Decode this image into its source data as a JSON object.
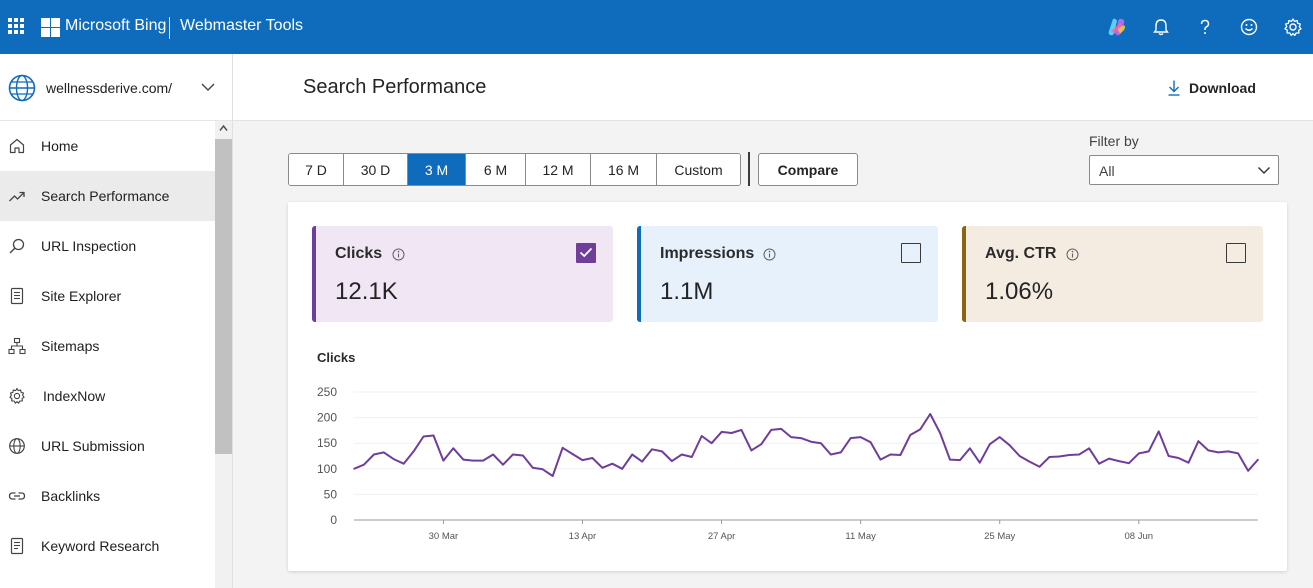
{
  "topbar": {
    "brand": "Microsoft Bing",
    "product": "Webmaster Tools",
    "color": "#0f6cbd",
    "icons": [
      "apps-waffle-icon",
      "copilot-icon",
      "bell-icon",
      "help-icon",
      "feedback-smiley-icon",
      "gear-icon"
    ]
  },
  "sidebar": {
    "site": "wellnessderive.com/",
    "items": [
      {
        "label": "Home",
        "icon": "home-icon",
        "active": false
      },
      {
        "label": "Search Performance",
        "icon": "trend-icon",
        "active": true
      },
      {
        "label": "URL Inspection",
        "icon": "search-icon",
        "active": false
      },
      {
        "label": "Site Explorer",
        "icon": "document-icon",
        "active": false
      },
      {
        "label": "Sitemaps",
        "icon": "sitemap-icon",
        "active": false
      },
      {
        "label": "IndexNow",
        "icon": "gear-icon",
        "active": false
      },
      {
        "label": "URL Submission",
        "icon": "globe-icon",
        "active": false
      },
      {
        "label": "Backlinks",
        "icon": "link-icon",
        "active": false
      },
      {
        "label": "Keyword Research",
        "icon": "document-icon",
        "active": false
      }
    ]
  },
  "header": {
    "title": "Search Performance",
    "download_label": "Download"
  },
  "range": {
    "options": [
      "7 D",
      "30 D",
      "3 M",
      "6 M",
      "12 M",
      "16 M",
      "Custom"
    ],
    "selected": "3 M",
    "compare_label": "Compare"
  },
  "filter": {
    "label": "Filter by",
    "value": "All"
  },
  "metrics": [
    {
      "name": "Clicks",
      "value": "12.1K",
      "checked": true,
      "accent": "#6f3e9b",
      "bg": "#f1e7f4"
    },
    {
      "name": "Impressions",
      "value": "1.1M",
      "checked": false,
      "accent": "#0f6cbd",
      "bg": "#e6f1fb"
    },
    {
      "name": "Avg. CTR",
      "value": "1.06%",
      "checked": false,
      "accent": "#8a6510",
      "bg": "#f4ece1"
    }
  ],
  "chart_data": {
    "type": "line",
    "title": "Clicks",
    "xlabel": "",
    "ylabel": "",
    "ylim": [
      0,
      250
    ],
    "yticks": [
      0,
      50,
      100,
      150,
      200,
      250
    ],
    "xtick_labels": [
      "30 Mar",
      "13 Apr",
      "27 Apr",
      "11 May",
      "25 May",
      "08 Jun"
    ],
    "xtick_index": [
      9,
      23,
      37,
      51,
      65,
      79
    ],
    "grid": true,
    "color": "#6f3e9b",
    "series": [
      {
        "name": "Clicks",
        "values": [
          100,
          108,
          128,
          132,
          119,
          110,
          134,
          163,
          165,
          116,
          140,
          118,
          116,
          116,
          128,
          108,
          128,
          126,
          102,
          99,
          86,
          141,
          129,
          117,
          121,
          102,
          110,
          100,
          128,
          114,
          138,
          134,
          115,
          128,
          123,
          164,
          150,
          172,
          170,
          176,
          136,
          148,
          176,
          178,
          162,
          160,
          153,
          150,
          128,
          132,
          160,
          162,
          152,
          118,
          128,
          127,
          166,
          177,
          207,
          170,
          118,
          117,
          140,
          112,
          148,
          162,
          146,
          125,
          114,
          104,
          123,
          124,
          127,
          128,
          140,
          110,
          120,
          115,
          111,
          130,
          134,
          173,
          125,
          121,
          112,
          154,
          136,
          132,
          134,
          130,
          96,
          118
        ]
      }
    ]
  }
}
